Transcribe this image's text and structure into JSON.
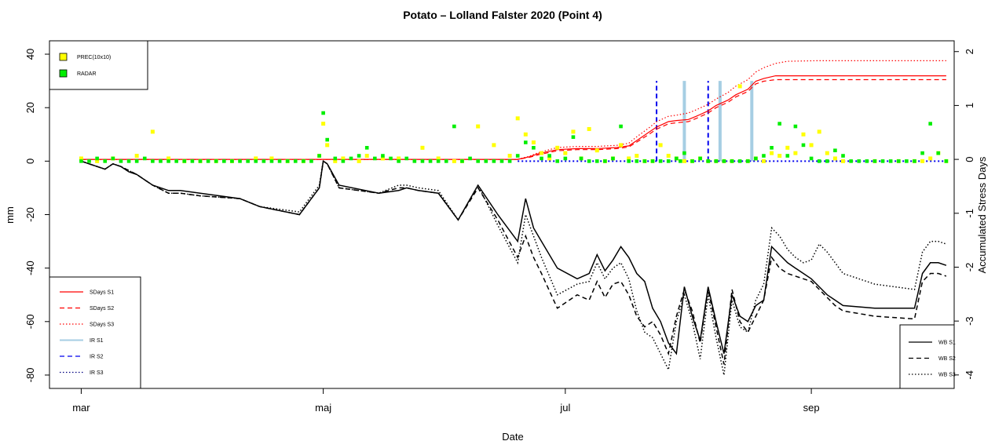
{
  "chart_data": {
    "type": "line",
    "title": "Potato – Lolland Falster 2020 (Point 4)",
    "xlabel": "Date",
    "ylabel": "mm",
    "y2label": "Accumulated Stress Days",
    "x_ticks": [
      "mar",
      "maj",
      "jul",
      "sep"
    ],
    "x_tick_days": [
      0,
      61,
      122,
      184
    ],
    "x_range_days": [
      -8,
      220
    ],
    "ylim": [
      -85,
      45
    ],
    "y_ticks": [
      40,
      20,
      0,
      -20,
      -40,
      -60,
      -80
    ],
    "y2lim": [
      -4.25,
      2.2
    ],
    "y2_ticks": [
      2,
      1,
      0,
      -1,
      -2,
      -3,
      -4
    ],
    "grid": false,
    "colors": {
      "prec": "#ffff00",
      "radar": "#00ee00",
      "sdays": "#ff0000",
      "ir_s1": "#a6cee3",
      "ir_s2": "#0000ee",
      "ir_s3": "#0000ee",
      "wb": "#000000"
    },
    "legend_top": {
      "placement": "top-left",
      "entries": [
        {
          "label": "PREC(10x10)",
          "color": "#ffff00"
        },
        {
          "label": "RADAR",
          "color": "#00ee00"
        }
      ]
    },
    "legend_left": {
      "placement": "bottom-left",
      "entries": [
        {
          "label": "SDays S1",
          "color": "#ff0000",
          "dash": "solid"
        },
        {
          "label": "SDays S2",
          "color": "#ff0000",
          "dash": "dashed"
        },
        {
          "label": "SDays S3",
          "color": "#ff0000",
          "dash": "dotted"
        },
        {
          "label": "IR S1",
          "color": "#a6cee3",
          "dash": "solid"
        },
        {
          "label": "IR S2",
          "color": "#0000ee",
          "dash": "dashed"
        },
        {
          "label": "IR S3",
          "color": "#000080",
          "dash": "dotted"
        }
      ]
    },
    "legend_right": {
      "placement": "bottom-right",
      "entries": [
        {
          "label": "WB S1",
          "color": "#000000",
          "dash": "solid"
        },
        {
          "label": "WB S2",
          "color": "#000000",
          "dash": "dashed"
        },
        {
          "label": "WB S3",
          "color": "#000000",
          "dash": "dotted"
        }
      ]
    },
    "series": [
      {
        "name": "WB S1",
        "axis": "left",
        "dash": "solid",
        "x": [
          0,
          2,
          4,
          6,
          8,
          10,
          12,
          14,
          16,
          18,
          22,
          25,
          30,
          40,
          45,
          55,
          60,
          61,
          62,
          65,
          75,
          80,
          82,
          85,
          90,
          95,
          100,
          105,
          110,
          112,
          114,
          116,
          120,
          125,
          128,
          130,
          132,
          134,
          136,
          138,
          140,
          142,
          144,
          146,
          148,
          150,
          152,
          154,
          156,
          158,
          160,
          162,
          164,
          166,
          168,
          170,
          172,
          174,
          176,
          178,
          180,
          182,
          184,
          186,
          188,
          190,
          192,
          200,
          210,
          212,
          214,
          216,
          218
        ],
        "y": [
          0,
          -1,
          -2,
          -3,
          -1,
          -2,
          -4,
          -5,
          -7,
          -9,
          -11,
          -11,
          -12,
          -14,
          -17,
          -20,
          -10,
          0,
          -1,
          -9,
          -12,
          -11,
          -10,
          -11,
          -12,
          -22,
          -9,
          -20,
          -30,
          -14,
          -25,
          -30,
          -40,
          -44,
          -42,
          -35,
          -41,
          -37,
          -32,
          -36,
          -42,
          -45,
          -55,
          -60,
          -68,
          -72,
          -47,
          -58,
          -67,
          -47,
          -60,
          -72,
          -50,
          -58,
          -60,
          -54,
          -52,
          -32,
          -35,
          -38,
          -40,
          -42,
          -44,
          -47,
          -50,
          -52,
          -54,
          -55,
          -55,
          -42,
          -38,
          -38,
          -39
        ]
      },
      {
        "name": "WB S2",
        "axis": "left",
        "dash": "dashed",
        "x": [
          0,
          2,
          4,
          6,
          8,
          10,
          14,
          18,
          22,
          25,
          30,
          40,
          45,
          55,
          60,
          61,
          62,
          65,
          75,
          80,
          82,
          85,
          90,
          95,
          100,
          105,
          110,
          112,
          114,
          116,
          120,
          125,
          128,
          130,
          132,
          134,
          136,
          138,
          140,
          142,
          144,
          146,
          148,
          150,
          152,
          154,
          156,
          158,
          160,
          162,
          164,
          166,
          168,
          170,
          172,
          174,
          176,
          178,
          180,
          182,
          184,
          186,
          188,
          190,
          192,
          200,
          210,
          212,
          214,
          216,
          218
        ],
        "y": [
          0,
          -1,
          -2,
          -3,
          -1,
          -2,
          -5,
          -9,
          -12,
          -12,
          -13,
          -14,
          -17,
          -20,
          -10,
          0,
          -1,
          -10,
          -12,
          -10,
          -10,
          -11,
          -12,
          -22,
          -10,
          -22,
          -36,
          -28,
          -36,
          -42,
          -55,
          -50,
          -52,
          -45,
          -51,
          -46,
          -45,
          -50,
          -58,
          -62,
          -60,
          -65,
          -72,
          -58,
          -48,
          -56,
          -68,
          -48,
          -62,
          -76,
          -48,
          -60,
          -64,
          -58,
          -52,
          -36,
          -40,
          -42,
          -43,
          -44,
          -45,
          -48,
          -51,
          -54,
          -56,
          -58,
          -59,
          -45,
          -42,
          -42,
          -43
        ]
      },
      {
        "name": "WB S3",
        "axis": "left",
        "dash": "dotted",
        "x": [
          0,
          2,
          4,
          6,
          8,
          10,
          14,
          18,
          22,
          25,
          30,
          40,
          45,
          55,
          60,
          61,
          62,
          65,
          75,
          80,
          82,
          85,
          90,
          95,
          100,
          105,
          110,
          112,
          114,
          116,
          120,
          125,
          128,
          130,
          132,
          134,
          136,
          138,
          140,
          142,
          144,
          146,
          148,
          150,
          152,
          154,
          156,
          158,
          160,
          162,
          164,
          166,
          168,
          170,
          172,
          174,
          176,
          178,
          180,
          182,
          184,
          186,
          188,
          190,
          192,
          200,
          210,
          212,
          214,
          216,
          218
        ],
        "y": [
          0,
          -1,
          -2,
          -3,
          -1,
          -2,
          -5,
          -9,
          -12,
          -12,
          -13,
          -14,
          -17,
          -19,
          -9,
          0,
          -1,
          -10,
          -12,
          -9,
          -9,
          -10,
          -11,
          -22,
          -9,
          -24,
          -38,
          -20,
          -28,
          -36,
          -50,
          -46,
          -45,
          -38,
          -44,
          -40,
          -38,
          -44,
          -56,
          -64,
          -66,
          -72,
          -78,
          -60,
          -50,
          -60,
          -74,
          -50,
          -66,
          -80,
          -52,
          -62,
          -64,
          -52,
          -46,
          -25,
          -28,
          -33,
          -36,
          -38,
          -37,
          -31,
          -34,
          -38,
          -42,
          -46,
          -48,
          -34,
          -30,
          -30,
          -31
        ]
      },
      {
        "name": "SDays S1",
        "axis": "right",
        "dash": "solid",
        "x": [
          0,
          110,
          113,
          115,
          118,
          120,
          125,
          130,
          135,
          138,
          140,
          143,
          145,
          148,
          150,
          153,
          155,
          158,
          160,
          163,
          165,
          168,
          170,
          172,
          175,
          178,
          185,
          190,
          200,
          210,
          218
        ],
        "y": [
          0,
          0,
          0.05,
          0.1,
          0.15,
          0.18,
          0.2,
          0.2,
          0.22,
          0.25,
          0.35,
          0.5,
          0.6,
          0.7,
          0.72,
          0.74,
          0.8,
          0.9,
          1.0,
          1.1,
          1.2,
          1.3,
          1.45,
          1.5,
          1.55,
          1.55,
          1.55,
          1.55,
          1.55,
          1.55,
          1.55
        ]
      },
      {
        "name": "SDays S2",
        "axis": "right",
        "dash": "dashed",
        "x": [
          0,
          110,
          113,
          115,
          118,
          120,
          125,
          130,
          135,
          138,
          140,
          143,
          145,
          148,
          150,
          153,
          155,
          158,
          160,
          163,
          165,
          168,
          170,
          172,
          175,
          178,
          185,
          190,
          200,
          210,
          218
        ],
        "y": [
          0,
          0,
          0.04,
          0.08,
          0.13,
          0.16,
          0.18,
          0.18,
          0.2,
          0.23,
          0.32,
          0.46,
          0.56,
          0.66,
          0.68,
          0.7,
          0.76,
          0.86,
          0.96,
          1.06,
          1.16,
          1.26,
          1.4,
          1.45,
          1.48,
          1.48,
          1.48,
          1.48,
          1.48,
          1.48,
          1.48
        ]
      },
      {
        "name": "SDays S3",
        "axis": "right",
        "dash": "dotted",
        "x": [
          0,
          110,
          113,
          115,
          118,
          120,
          125,
          130,
          135,
          138,
          140,
          143,
          145,
          148,
          150,
          153,
          155,
          158,
          160,
          163,
          165,
          168,
          170,
          172,
          175,
          178,
          185,
          190,
          200,
          210,
          218
        ],
        "y": [
          0,
          0,
          0.06,
          0.12,
          0.18,
          0.22,
          0.24,
          0.24,
          0.26,
          0.3,
          0.42,
          0.58,
          0.7,
          0.8,
          0.82,
          0.86,
          0.92,
          1.02,
          1.12,
          1.24,
          1.36,
          1.48,
          1.62,
          1.7,
          1.78,
          1.82,
          1.83,
          1.83,
          1.83,
          1.83,
          1.83
        ]
      }
    ],
    "ir_events": [
      {
        "name": "IR S1",
        "x": [
          152,
          161,
          169
        ],
        "height_mm": [
          30,
          30,
          30
        ]
      },
      {
        "name": "IR S2",
        "x": [
          145,
          158
        ],
        "height_mm": [
          30,
          30
        ]
      }
    ],
    "radar_points": {
      "x": [
        0,
        2,
        4,
        6,
        8,
        10,
        12,
        14,
        16,
        18,
        20,
        22,
        24,
        26,
        28,
        30,
        32,
        34,
        36,
        38,
        40,
        42,
        44,
        46,
        48,
        50,
        52,
        54,
        56,
        58,
        60,
        61,
        62,
        64,
        66,
        68,
        70,
        72,
        74,
        76,
        78,
        80,
        82,
        84,
        86,
        88,
        90,
        92,
        94,
        96,
        98,
        100,
        102,
        104,
        106,
        108,
        110,
        112,
        114,
        116,
        118,
        120,
        122,
        124,
        126,
        128,
        130,
        132,
        134,
        136,
        138,
        140,
        142,
        144,
        146,
        148,
        150,
        151,
        152,
        154,
        156,
        158,
        160,
        162,
        164,
        166,
        168,
        170,
        172,
        174,
        176,
        178,
        180,
        182,
        184,
        186,
        188,
        190,
        192,
        194,
        196,
        198,
        200,
        202,
        204,
        206,
        208,
        210,
        212,
        214,
        216,
        218
      ],
      "y": [
        0,
        0,
        1,
        0,
        1,
        0,
        0,
        0,
        1,
        0,
        0,
        0,
        0,
        0,
        0,
        0,
        0,
        0,
        0,
        0,
        0,
        0,
        0,
        0,
        0,
        0,
        0,
        0,
        0,
        0,
        2,
        18,
        8,
        1,
        0,
        1,
        2,
        5,
        1,
        2,
        1,
        0,
        1,
        0,
        0,
        0,
        0,
        0,
        13,
        0,
        1,
        0,
        0,
        0,
        0,
        0,
        2,
        7,
        5,
        1,
        2,
        0,
        1,
        9,
        1,
        0,
        0,
        0,
        1,
        13,
        0,
        0,
        0,
        0,
        0,
        0,
        1,
        0,
        3,
        0,
        1,
        0,
        0,
        0,
        0,
        0,
        0,
        1,
        2,
        5,
        14,
        2,
        13,
        6,
        1,
        0,
        0,
        4,
        2,
        0,
        0,
        0,
        0,
        0,
        0,
        0,
        0,
        0,
        3,
        14,
        3,
        0
      ]
    },
    "prec_points": {
      "x": [
        0,
        4,
        8,
        14,
        18,
        22,
        26,
        30,
        34,
        38,
        44,
        48,
        52,
        56,
        60,
        61,
        62,
        64,
        66,
        70,
        72,
        76,
        80,
        86,
        90,
        94,
        96,
        100,
        104,
        108,
        110,
        112,
        114,
        116,
        118,
        120,
        122,
        124,
        126,
        128,
        130,
        132,
        134,
        136,
        138,
        140,
        142,
        144,
        146,
        148,
        150,
        152,
        154,
        156,
        158,
        160,
        162,
        164,
        166,
        168,
        170,
        172,
        174,
        176,
        178,
        180,
        182,
        184,
        186,
        188,
        190,
        192,
        200,
        206,
        210,
        212,
        214,
        216,
        218
      ],
      "y": [
        1,
        0,
        1,
        2,
        11,
        1,
        0,
        0,
        0,
        0,
        1,
        1,
        0,
        0,
        2,
        14,
        6,
        0,
        1,
        0,
        2,
        1,
        1,
        5,
        1,
        0,
        0,
        13,
        6,
        2,
        16,
        10,
        7,
        3,
        1,
        5,
        3,
        11,
        1,
        12,
        4,
        0,
        1,
        6,
        1,
        2,
        0,
        0,
        6,
        2,
        1,
        0,
        0,
        1,
        0,
        0,
        0,
        0,
        28,
        0,
        1,
        0,
        3,
        2,
        5,
        3,
        10,
        6,
        11,
        3,
        1,
        0,
        0,
        0,
        0,
        0,
        1,
        3,
        0
      ]
    }
  }
}
